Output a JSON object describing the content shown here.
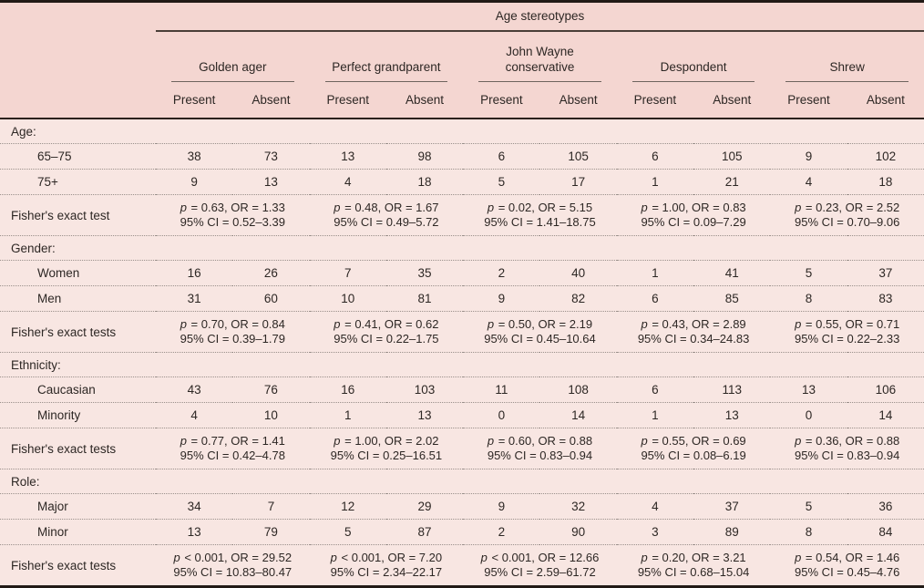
{
  "colors": {
    "header_background": "#f4d6d1",
    "body_background": "#f8e6e2",
    "page_background": "#faf0ed",
    "rule_black": "#211a16",
    "text": "#2d2724"
  },
  "table": {
    "span_header": "Age stereotypes",
    "groups": [
      {
        "name": "Golden ager"
      },
      {
        "name": "Perfect grandparent"
      },
      {
        "name": "John Wayne conservative"
      },
      {
        "name": "Despondent"
      },
      {
        "name": "Shrew"
      }
    ],
    "subcols": {
      "present": "Present",
      "absent": "Absent"
    },
    "sections": [
      {
        "label": "Age:",
        "rows": [
          {
            "label": "65–75",
            "values": [
              38,
              73,
              13,
              98,
              6,
              105,
              6,
              105,
              9,
              102
            ]
          },
          {
            "label": "75+",
            "values": [
              9,
              13,
              4,
              18,
              5,
              17,
              1,
              21,
              4,
              18
            ]
          }
        ],
        "fisher_label": "Fisher's exact test",
        "fisher": [
          {
            "p": "p = 0.63, OR = 1.33",
            "ci": "95% CI = 0.52–3.39"
          },
          {
            "p": "p = 0.48, OR = 1.67",
            "ci": "95% CI = 0.49–5.72"
          },
          {
            "p": "p = 0.02, OR = 5.15",
            "ci": "95% CI = 1.41–18.75"
          },
          {
            "p": "p = 1.00, OR = 0.83",
            "ci": "95% CI = 0.09–7.29"
          },
          {
            "p": "p = 0.23, OR = 2.52",
            "ci": "95% CI = 0.70–9.06"
          }
        ]
      },
      {
        "label": "Gender:",
        "rows": [
          {
            "label": "Women",
            "values": [
              16,
              26,
              7,
              35,
              2,
              40,
              1,
              41,
              5,
              37
            ]
          },
          {
            "label": "Men",
            "values": [
              31,
              60,
              10,
              81,
              9,
              82,
              6,
              85,
              8,
              83
            ]
          }
        ],
        "fisher_label": "Fisher's exact tests",
        "fisher": [
          {
            "p": "p = 0.70, OR = 0.84",
            "ci": "95% CI = 0.39–1.79"
          },
          {
            "p": "p = 0.41, OR = 0.62",
            "ci": "95% CI = 0.22–1.75"
          },
          {
            "p": "p = 0.50, OR = 2.19",
            "ci": "95% CI = 0.45–10.64"
          },
          {
            "p": "p = 0.43, OR = 2.89",
            "ci": "95% CI = 0.34–24.83"
          },
          {
            "p": "p = 0.55, OR = 0.71",
            "ci": "95% CI = 0.22–2.33"
          }
        ]
      },
      {
        "label": "Ethnicity:",
        "rows": [
          {
            "label": "Caucasian",
            "values": [
              43,
              76,
              16,
              103,
              11,
              108,
              6,
              113,
              13,
              106
            ]
          },
          {
            "label": "Minority",
            "values": [
              4,
              10,
              1,
              13,
              0,
              14,
              1,
              13,
              0,
              14
            ]
          }
        ],
        "fisher_label": "Fisher's exact tests",
        "fisher": [
          {
            "p": "p = 0.77, OR = 1.41",
            "ci": "95% CI = 0.42–4.78"
          },
          {
            "p": "p = 1.00, OR = 2.02",
            "ci": "95% CI = 0.25–16.51"
          },
          {
            "p": "p = 0.60, OR = 0.88",
            "ci": "95% CI = 0.83–0.94"
          },
          {
            "p": "p = 0.55, OR = 0.69",
            "ci": "95% CI = 0.08–6.19"
          },
          {
            "p": "p = 0.36, OR = 0.88",
            "ci": "95% CI = 0.83–0.94"
          }
        ]
      },
      {
        "label": "Role:",
        "rows": [
          {
            "label": "Major",
            "values": [
              34,
              7,
              12,
              29,
              9,
              32,
              4,
              37,
              5,
              36
            ]
          },
          {
            "label": "Minor",
            "values": [
              13,
              79,
              5,
              87,
              2,
              90,
              3,
              89,
              8,
              84
            ]
          }
        ],
        "fisher_label": "Fisher's exact tests",
        "fisher": [
          {
            "p": "p < 0.001, OR = 29.52",
            "ci": "95% CI = 10.83–80.47"
          },
          {
            "p": "p < 0.001, OR = 7.20",
            "ci": "95% CI = 2.34–22.17"
          },
          {
            "p": "p < 0.001, OR = 12.66",
            "ci": "95% CI = 2.59–61.72"
          },
          {
            "p": "p = 0.20, OR = 3.21",
            "ci": "95% CI = 0.68–15.04"
          },
          {
            "p": "p = 0.54, OR = 1.46",
            "ci": "95% CI = 0.45–4.76"
          }
        ]
      }
    ]
  }
}
